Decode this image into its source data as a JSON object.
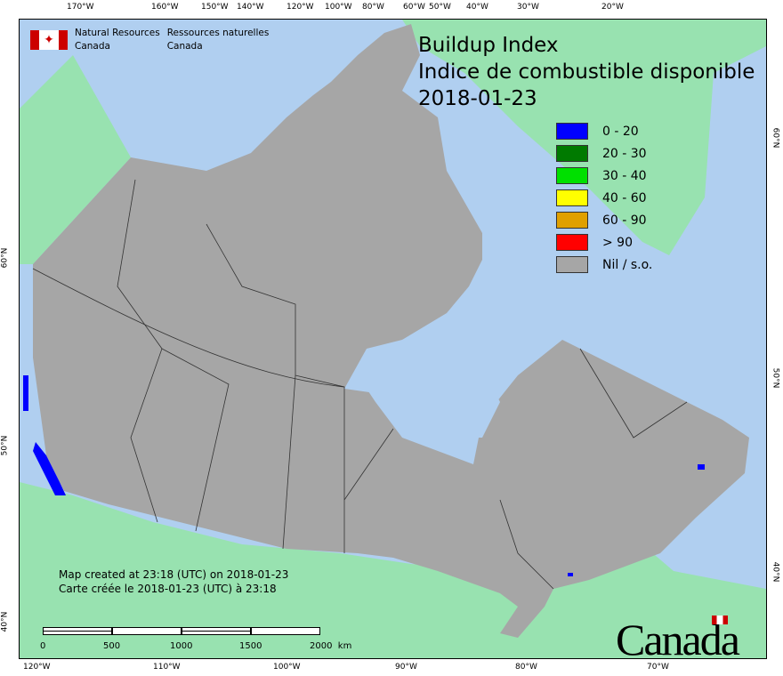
{
  "agency": {
    "en_line1": "Natural Resources",
    "en_line2": "Canada",
    "fr_line1": "Ressources naturelles",
    "fr_line2": "Canada"
  },
  "title": {
    "line1": "Buildup Index",
    "line2": "Indice de combustible disponible",
    "date": "2018-01-23"
  },
  "legend": [
    {
      "label": "0 - 20",
      "color": "#0000ff"
    },
    {
      "label": "20 - 30",
      "color": "#007a00"
    },
    {
      "label": "30 - 40",
      "color": "#00e000"
    },
    {
      "label": "40 - 60",
      "color": "#ffff00"
    },
    {
      "label": "60 - 90",
      "color": "#e0a000"
    },
    {
      "label": "> 90",
      "color": "#ff0000"
    },
    {
      "label": "Nil / s.o.",
      "color": "#a6a6a6"
    }
  ],
  "created": {
    "en": "Map created at 23:18 (UTC) on 2018-01-23",
    "fr": "Carte créée le 2018-01-23 (UTC) à 23:18"
  },
  "scale": {
    "labels": [
      "0",
      "500",
      "1000",
      "1500",
      "2000  km"
    ]
  },
  "wordmark": "Canada",
  "graticule": {
    "top": [
      "170°W",
      "160°W",
      "150°W",
      "140°W",
      "120°W",
      "100°W",
      "80°W",
      "60°W",
      "50°W",
      "40°W",
      "30°W",
      "20°W"
    ],
    "bottom": [
      "120°W",
      "110°W",
      "100°W",
      "90°W",
      "80°W",
      "70°W"
    ],
    "left": [
      "60°N",
      "50°N",
      "40°N"
    ],
    "right": [
      "60°N",
      "50°N",
      "40°N"
    ]
  },
  "colors": {
    "ocean": "#b0cff0",
    "foreign_land": "#98e2b0",
    "canada_nil": "#a6a6a6"
  }
}
